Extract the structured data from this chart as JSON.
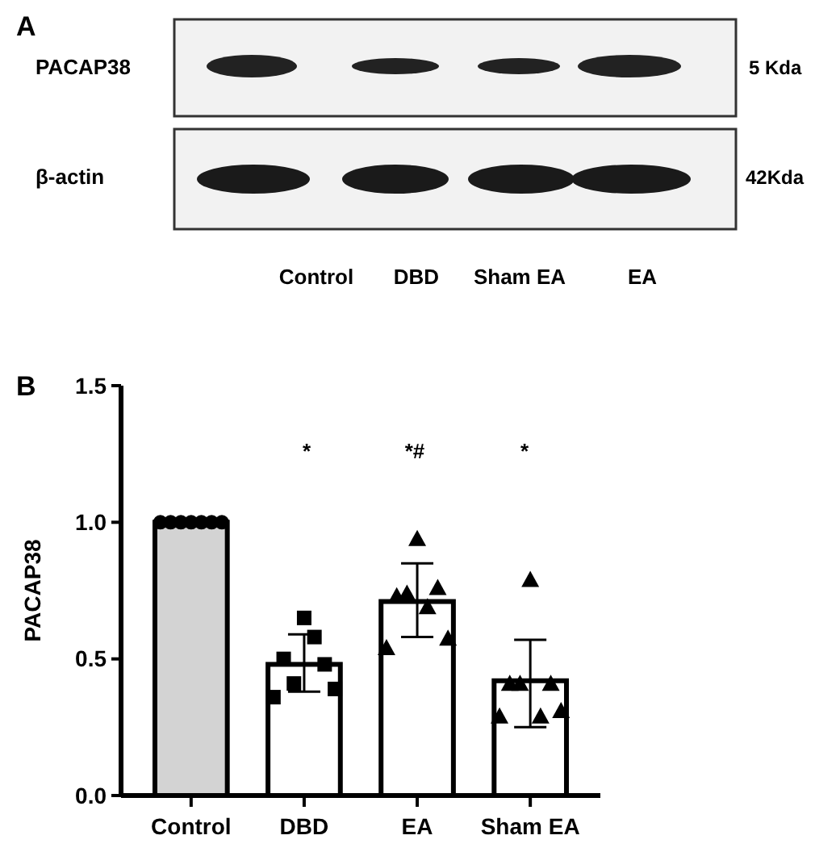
{
  "chart_data": {
    "type": "bar",
    "ylabel": "PACAP38",
    "categories": [
      "Control",
      "DBD",
      "EA",
      "Sham EA"
    ],
    "ylim": [
      0,
      1.5
    ],
    "yticks": [
      {
        "value": 0,
        "label": "0.0"
      },
      {
        "value": 0.5,
        "label": "0.5"
      },
      {
        "value": 1,
        "label": "1.0"
      },
      {
        "value": 1.5,
        "label": "1.5"
      }
    ],
    "grid": false,
    "series": [
      {
        "values": [
          1,
          0.48,
          0.71,
          0.42
        ],
        "colors": [
          "#d3d3d3",
          "#ffffff",
          "#ffffff",
          "#ffffff"
        ],
        "errors": [
          null,
          [
            0.38,
            0.59
          ],
          [
            0.58,
            0.85
          ],
          [
            0.25,
            0.57
          ]
        ]
      },
      {
        "type": "scatter",
        "marker": "circle",
        "color": "#000000",
        "x": [
          "Control",
          "Control",
          "Control",
          "Control",
          "Control",
          "Control",
          "Control"
        ],
        "values": [
          1,
          1,
          1,
          1,
          1,
          1,
          1
        ]
      },
      {
        "type": "scatter",
        "marker": "square",
        "color": "#000000",
        "x": [
          "DBD",
          "DBD",
          "DBD",
          "DBD",
          "DBD",
          "DBD",
          "DBD"
        ],
        "values": [
          0.36,
          0.5,
          0.41,
          0.65,
          0.58,
          0.48,
          0.39
        ]
      },
      {
        "type": "scatter",
        "marker": "triangle",
        "color": "#000000",
        "x": [
          "EA",
          "EA",
          "EA",
          "EA",
          "EA",
          "EA",
          "EA"
        ],
        "values": [
          0.54,
          0.73,
          0.74,
          0.94,
          0.69,
          0.76,
          0.575
        ]
      },
      {
        "type": "scatter",
        "marker": "triangle",
        "color": "#000000",
        "x": [
          "Sham EA",
          "Sham EA",
          "Sham EA",
          "Sham EA",
          "Sham EA",
          "Sham EA",
          "Sham EA"
        ],
        "values": [
          0.29,
          0.41,
          0.41,
          0.79,
          0.29,
          0.41,
          0.31
        ]
      }
    ],
    "annotations": [
      "*",
      "*#",
      "*",
      "A",
      "B",
      "PACAP38",
      "5 Kda",
      "β-actin",
      "42Kda",
      "Control",
      "DBD",
      "Sham EA",
      "EA"
    ]
  }
}
